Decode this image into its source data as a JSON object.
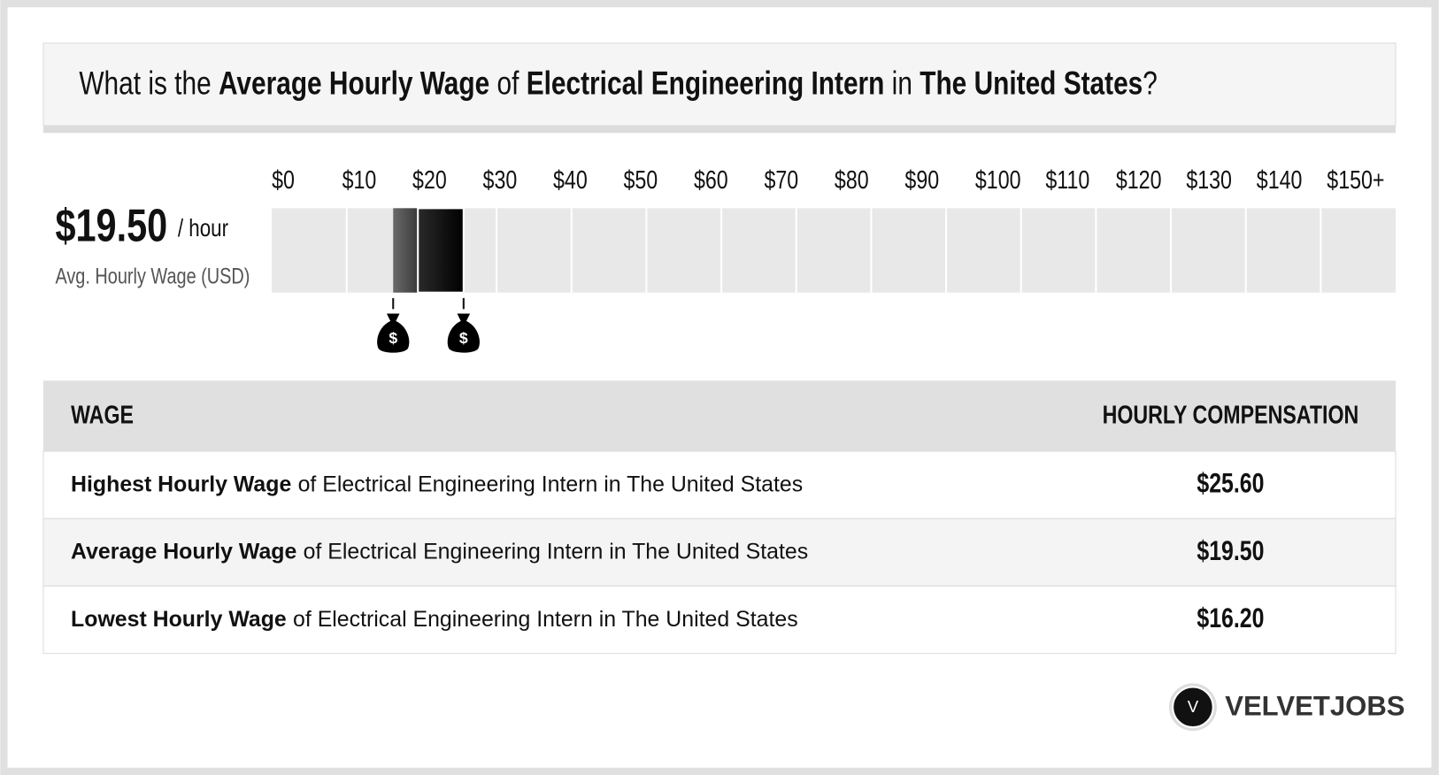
{
  "title": [
    "What is the",
    "Average Hourly Wage",
    "of",
    "Electrical Engineering Intern",
    "in",
    "The United States",
    "?"
  ],
  "summary": {
    "amount": "$19.50",
    "unit": "/ hour",
    "caption": "Avg. Hourly Wage (USD)"
  },
  "scale": {
    "ticks": [
      {
        "value": 0,
        "label": "$0"
      },
      {
        "value": 10,
        "label": "$10"
      },
      {
        "value": 20,
        "label": "$20"
      },
      {
        "value": 30,
        "label": "$30"
      },
      {
        "value": 40,
        "label": "$40"
      },
      {
        "value": 50,
        "label": "$50"
      },
      {
        "value": 60,
        "label": "$60"
      },
      {
        "value": 70,
        "label": "$70"
      },
      {
        "value": 80,
        "label": "$80"
      },
      {
        "value": 90,
        "label": "$90"
      },
      {
        "value": 100,
        "label": "$100"
      },
      {
        "value": 110,
        "label": "$110"
      },
      {
        "value": 120,
        "label": "$120"
      },
      {
        "value": 130,
        "label": "$130"
      },
      {
        "value": 140,
        "label": "$140"
      },
      {
        "value": 150,
        "label": "$150+"
      }
    ],
    "marker_symbol": "$"
  },
  "table": {
    "header": [
      "WAGE",
      "HOURLY COMPENSATION"
    ],
    "rows": [
      {
        "label": "Highest Hourly Wage",
        "detail": "of Electrical Engineering Intern in The United States",
        "wage": {
          "value": 25.6,
          "label": "$25.60"
        }
      },
      {
        "label": "Average Hourly Wage",
        "detail": "of Electrical Engineering Intern in The United States",
        "wage": {
          "value": 19.5,
          "label": "$19.50"
        }
      },
      {
        "label": "Lowest Hourly Wage",
        "detail": "of Electrical Engineering Intern in The United States",
        "wage": {
          "value": 16.2,
          "label": "$16.20"
        }
      }
    ]
  },
  "brand": {
    "initial": "V",
    "name": "VELVETJOBS"
  }
}
